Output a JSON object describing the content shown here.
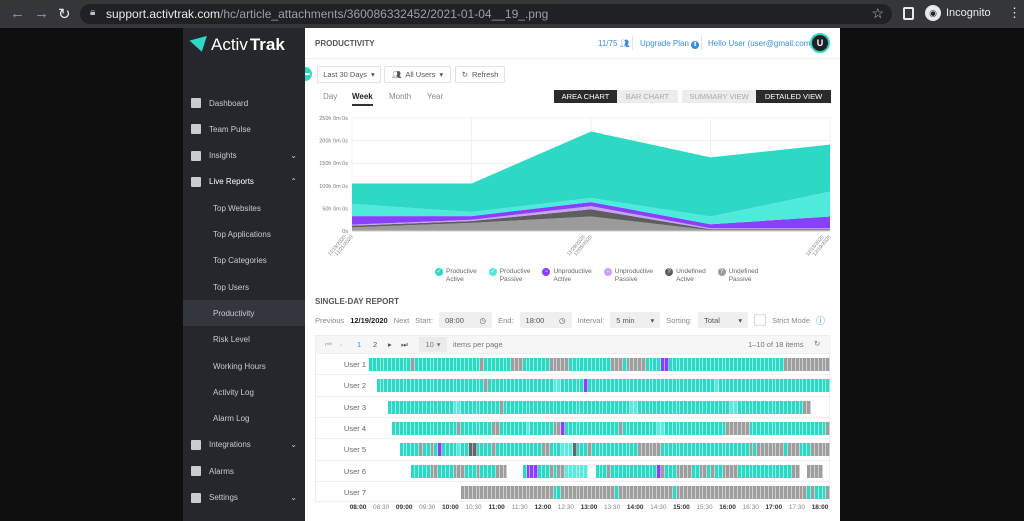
{
  "browser": {
    "url_host": "support.activtrak.com",
    "url_path": "/hc/article_attachments/360086332452/2021-01-04__19_.png",
    "incognito_label": "Incognito"
  },
  "sidebar": {
    "logo_regular": "Activ",
    "logo_bold": "Trak",
    "items": [
      {
        "label": "Dashboard",
        "icon": "dashboard-icon"
      },
      {
        "label": "Team Pulse",
        "icon": "team-pulse-icon"
      },
      {
        "label": "Insights",
        "icon": "insights-icon",
        "chevron": "down"
      },
      {
        "label": "Live Reports",
        "icon": "live-reports-icon",
        "chevron": "up"
      },
      {
        "label": "Top Websites",
        "sub": true
      },
      {
        "label": "Top Applications",
        "sub": true
      },
      {
        "label": "Top Categories",
        "sub": true
      },
      {
        "label": "Top Users",
        "sub": true
      },
      {
        "label": "Productivity",
        "sub": true,
        "active": true
      },
      {
        "label": "Risk Level",
        "sub": true
      },
      {
        "label": "Working Hours",
        "sub": true
      },
      {
        "label": "Activity Log",
        "sub": true
      },
      {
        "label": "Alarm Log",
        "sub": true
      },
      {
        "label": "Integrations",
        "icon": "integrations-icon",
        "chevron": "down"
      },
      {
        "label": "Alarms",
        "icon": "bell-icon"
      },
      {
        "label": "Settings",
        "icon": "gear-icon",
        "chevron": "down"
      }
    ]
  },
  "header": {
    "title": "PRODUCTIVITY",
    "user_count": "11/75",
    "upgrade": "Upgrade Plan",
    "hello": "Hello User  (user@gmail.com)",
    "avatar": "U"
  },
  "filters": {
    "date_range": "Last 30 Days",
    "users": "All Users",
    "refresh": "Refresh"
  },
  "tabs": [
    "Day",
    "Week",
    "Month",
    "Year"
  ],
  "active_tab": "Week",
  "toggles": {
    "area": "AREA CHART",
    "bar": "BAR CHART",
    "summary": "SUMMARY VIEW",
    "detailed": "DETAILED VIEW",
    "active_chart": "area",
    "active_view": "detailed"
  },
  "chart_data": {
    "type": "area",
    "stacked": true,
    "grid": true,
    "y_ticks": [
      "0s",
      "50h 0m 0s",
      "100h 0m 0s",
      "150h 0m 0s",
      "200h 0m 0s",
      "250h 0m 0s"
    ],
    "ylim": [
      0,
      250
    ],
    "y_unit": "hours",
    "x_tick_labels": [
      [
        "11/15/2020",
        "11/21/2020"
      ],
      [
        "11/29/2020",
        "12/05/2020"
      ],
      [
        "12/13/2020",
        "12/19/2020"
      ]
    ],
    "x_tick_positions": [
      0,
      2,
      4
    ],
    "series": [
      {
        "name": "Undefined Passive",
        "color": "#9b9b9b",
        "values": [
          8,
          18,
          32,
          2,
          2
        ]
      },
      {
        "name": "Undefined Active",
        "color": "#5e5e5e",
        "values": [
          4,
          4,
          16,
          2,
          2
        ]
      },
      {
        "name": "Unproductive Passive",
        "color": "#c9a3f7",
        "values": [
          2,
          3,
          7,
          2,
          2
        ]
      },
      {
        "name": "Unproductive Active",
        "color": "#8a3ffc",
        "values": [
          19,
          8,
          9,
          9,
          26
        ]
      },
      {
        "name": "Productive Passive",
        "color": "#4eeadb",
        "values": [
          27,
          9,
          9,
          17,
          55
        ]
      },
      {
        "name": "Productive Active",
        "color": "#2dd9c5",
        "values": [
          45,
          63,
          147,
          131,
          104
        ]
      }
    ],
    "legend": [
      {
        "l1": "Productive",
        "l2": "Active",
        "color": "#2dd9c5",
        "glyph": "✓"
      },
      {
        "l1": "Productive",
        "l2": "Passive",
        "color": "#4eeadb",
        "glyph": "✓"
      },
      {
        "l1": "Unproductive",
        "l2": "Active",
        "color": "#8a3ffc",
        "glyph": "−"
      },
      {
        "l1": "Unproductive",
        "l2": "Passive",
        "color": "#c9a3f7",
        "glyph": "−"
      },
      {
        "l1": "Undefined",
        "l2": "Active",
        "color": "#5e5e5e",
        "glyph": "?"
      },
      {
        "l1": "Undefined",
        "l2": "Passive",
        "color": "#9b9b9b",
        "glyph": "?"
      }
    ],
    "legend_position": "bottom"
  },
  "single_day": {
    "title": "SINGLE-DAY REPORT",
    "previous": "Previous",
    "date": "12/19/2020",
    "next": "Next",
    "start_label": "Start:",
    "start": "08:00",
    "end_label": "End:",
    "end": "18:00",
    "interval_label": "Interval:",
    "interval": "5 min",
    "sorting_label": "Sorting:",
    "sorting": "Total",
    "strict_mode": "Strict Mode",
    "strict_checked": false
  },
  "pager": {
    "pages": [
      "1",
      "2"
    ],
    "current": "1",
    "page_size": "10",
    "per_page_label": "items per page",
    "range": "1–10 of 18 items"
  },
  "timeline": {
    "colors": {
      "a": "#2dd9c5",
      "p": "#5ee9df",
      "u": "#8a3ffc",
      "d": "#666666",
      "g": "#9e9e9e"
    },
    "slots": 120,
    "users": [
      {
        "name": "User 1",
        "runs": [
          [
            "a",
            11
          ],
          [
            "g",
            1
          ],
          [
            "a",
            17
          ],
          [
            "g",
            1
          ],
          [
            "a",
            7
          ],
          [
            "g",
            3
          ],
          [
            "a",
            7
          ],
          [
            "g",
            5
          ],
          [
            "a",
            11
          ],
          [
            "g",
            3
          ],
          [
            "a",
            1
          ],
          [
            "g",
            5
          ],
          [
            "a",
            4
          ],
          [
            "u",
            2
          ],
          [
            "a",
            30
          ],
          [
            "g",
            12
          ]
        ]
      },
      {
        "name": "User 2",
        "runs": [
          [
            ".",
            2
          ],
          [
            "a",
            28
          ],
          [
            "g",
            1
          ],
          [
            "a",
            17
          ],
          [
            "p",
            2
          ],
          [
            "a",
            6
          ],
          [
            "u",
            1
          ],
          [
            "a",
            33
          ],
          [
            "p",
            1
          ],
          [
            "a",
            29
          ]
        ]
      },
      {
        "name": "User 3",
        "runs": [
          [
            ".",
            5
          ],
          [
            "a",
            17
          ],
          [
            "p",
            2
          ],
          [
            "a",
            10
          ],
          [
            "g",
            1
          ],
          [
            "a",
            33
          ],
          [
            "p",
            2
          ],
          [
            "a",
            24
          ],
          [
            "p",
            2
          ],
          [
            "a",
            17
          ],
          [
            "g",
            2
          ],
          [
            ".",
            5
          ]
        ]
      },
      {
        "name": "User 4",
        "runs": [
          [
            ".",
            6
          ],
          [
            "a",
            17
          ],
          [
            "g",
            1
          ],
          [
            "a",
            8
          ],
          [
            "g",
            2
          ],
          [
            "a",
            7
          ],
          [
            "p",
            1
          ],
          [
            "a",
            6
          ],
          [
            "g",
            2
          ],
          [
            "u",
            1
          ],
          [
            "a",
            14
          ],
          [
            "g",
            1
          ],
          [
            "a",
            9
          ],
          [
            "p",
            2
          ],
          [
            "a",
            16
          ],
          [
            "g",
            6
          ],
          [
            "a",
            20
          ],
          [
            "g",
            1
          ]
        ]
      },
      {
        "name": "User 5",
        "runs": [
          [
            ".",
            8
          ],
          [
            "a",
            5
          ],
          [
            "g",
            1
          ],
          [
            "a",
            2
          ],
          [
            "g",
            1
          ],
          [
            "a",
            1
          ],
          [
            "u",
            1
          ],
          [
            "a",
            4
          ],
          [
            "p",
            1
          ],
          [
            "a",
            2
          ],
          [
            "d",
            2
          ],
          [
            "a",
            4
          ],
          [
            "g",
            1
          ],
          [
            "a",
            12
          ],
          [
            "g",
            2
          ],
          [
            "a",
            3
          ],
          [
            "p",
            3
          ],
          [
            "d",
            1
          ],
          [
            "a",
            3
          ],
          [
            "g",
            1
          ],
          [
            "a",
            12
          ],
          [
            "g",
            6
          ],
          [
            "a",
            23
          ],
          [
            "g",
            1
          ],
          [
            "a",
            1
          ],
          [
            "g",
            7
          ],
          [
            "a",
            1
          ],
          [
            "g",
            3
          ],
          [
            "a",
            3
          ],
          [
            "g",
            5
          ]
        ]
      },
      {
        "name": "User 6",
        "runs": [
          [
            ".",
            11
          ],
          [
            "a",
            5
          ],
          [
            "g",
            2
          ],
          [
            "a",
            4
          ],
          [
            "g",
            3
          ],
          [
            "a",
            3
          ],
          [
            "g",
            1
          ],
          [
            "a",
            4
          ],
          [
            "g",
            3
          ],
          [
            ".",
            4
          ],
          [
            "a",
            1
          ],
          [
            "u",
            3
          ],
          [
            "a",
            3
          ],
          [
            "g",
            1
          ],
          [
            "a",
            1
          ],
          [
            "g",
            2
          ],
          [
            "p",
            6
          ],
          [
            ".",
            2
          ],
          [
            "a",
            3
          ],
          [
            "g",
            1
          ],
          [
            "a",
            12
          ],
          [
            "u",
            1
          ],
          [
            "g",
            1
          ],
          [
            "a",
            3
          ],
          [
            "g",
            4
          ],
          [
            "a",
            2
          ],
          [
            "g",
            2
          ],
          [
            "a",
            1
          ],
          [
            "g",
            1
          ],
          [
            "a",
            2
          ],
          [
            "g",
            4
          ],
          [
            "a",
            14
          ],
          [
            "g",
            2
          ],
          [
            ".",
            2
          ],
          [
            "g",
            4
          ],
          [
            ".",
            2
          ]
        ]
      },
      {
        "name": "User 7",
        "runs": [
          [
            ".",
            24
          ],
          [
            "g",
            24
          ],
          [
            "a",
            2
          ],
          [
            "g",
            14
          ],
          [
            "a",
            1
          ],
          [
            "g",
            14
          ],
          [
            "a",
            1
          ],
          [
            "g",
            34
          ],
          [
            "a",
            1
          ],
          [
            "g",
            1
          ],
          [
            "a",
            3
          ],
          [
            "g",
            1
          ]
        ]
      }
    ],
    "time_ticks": [
      "08:00",
      "08:30",
      "09:00",
      "09:30",
      "10:00",
      "10:30",
      "11:00",
      "11:30",
      "12:00",
      "12:30",
      "13:00",
      "13:30",
      "14:00",
      "14:30",
      "15:00",
      "15:30",
      "16:00",
      "16:30",
      "17:00",
      "17:30",
      "18:00"
    ]
  }
}
